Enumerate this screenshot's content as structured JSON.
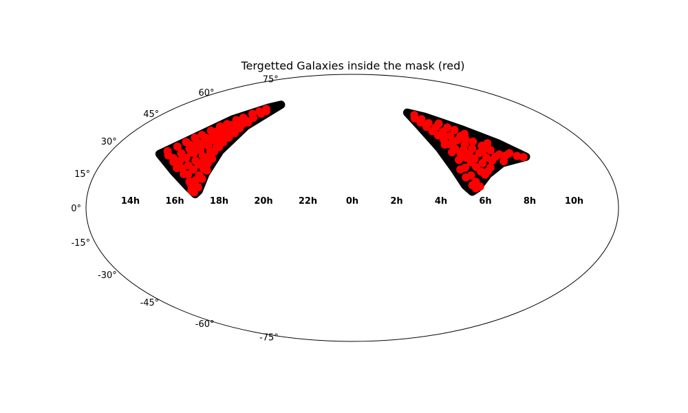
{
  "chart_data": {
    "type": "scatter",
    "projection": "aitoff",
    "title": "Tergetted Galaxies inside the mask (red)",
    "xlabel": "",
    "ylabel": "",
    "x_tick_labels": [
      "14h",
      "16h",
      "18h",
      "20h",
      "22h",
      "0h",
      "2h",
      "4h",
      "6h",
      "8h",
      "10h"
    ],
    "y_tick_labels": [
      "-75°",
      "-60°",
      "-45°",
      "-30°",
      "-15°",
      "0°",
      "15°",
      "30°",
      "45°",
      "60°",
      "75°"
    ],
    "y_ticks_deg": [
      -75,
      -60,
      -45,
      -30,
      -15,
      0,
      15,
      30,
      45,
      60,
      75
    ],
    "x_range_deg": [
      -180,
      180
    ],
    "y_range_deg": [
      -90,
      90
    ],
    "grid": false,
    "legend": "none",
    "colors": {
      "mask": "#000000",
      "targets": "#ff0000",
      "outline": "#000000"
    },
    "regions": [
      {
        "role": "mask footprint",
        "color": "#000000",
        "polygon": [
          [
            -145,
            28
          ],
          [
            -120,
            52
          ],
          [
            -104,
            62
          ],
          [
            -96,
            65
          ],
          [
            -101,
            50
          ],
          [
            -103,
            34
          ],
          [
            -104,
            20
          ],
          [
            -105,
            10
          ],
          [
            -107,
            8
          ],
          [
            -113,
            12
          ],
          [
            -127,
            20
          ],
          [
            -145,
            28
          ]
        ]
      },
      {
        "role": "mask footprint",
        "color": "#000000",
        "polygon": [
          [
            66,
            62
          ],
          [
            66,
            55
          ],
          [
            70,
            38
          ],
          [
            74,
            24
          ],
          [
            78,
            14
          ],
          [
            82,
            10
          ],
          [
            86,
            12
          ],
          [
            96,
            20
          ],
          [
            110,
            26
          ],
          [
            130,
            28
          ],
          [
            118,
            37
          ],
          [
            100,
            48
          ],
          [
            80,
            58
          ],
          [
            66,
            62
          ]
        ]
      }
    ],
    "series": [
      {
        "color": "#ff0000",
        "points": [
          [
            -141,
            30
          ],
          [
            -137,
            33
          ],
          [
            -134,
            36
          ],
          [
            -131,
            39
          ],
          [
            -128,
            41
          ],
          [
            -125,
            44
          ],
          [
            -122,
            47
          ],
          [
            -119,
            49
          ],
          [
            -116,
            52
          ],
          [
            -113,
            54
          ],
          [
            -110,
            57
          ],
          [
            -107,
            59
          ],
          [
            -104,
            61
          ],
          [
            -101,
            60
          ],
          [
            -138,
            28
          ],
          [
            -133,
            27
          ],
          [
            -130,
            30
          ],
          [
            -127,
            33
          ],
          [
            -124,
            35
          ],
          [
            -121,
            38
          ],
          [
            -118,
            41
          ],
          [
            -115,
            43
          ],
          [
            -112,
            46
          ],
          [
            -109,
            48
          ],
          [
            -106,
            51
          ],
          [
            -104,
            55
          ],
          [
            -102,
            58
          ],
          [
            -131,
            25
          ],
          [
            -127,
            26
          ],
          [
            -124,
            28
          ],
          [
            -121,
            31
          ],
          [
            -118,
            33
          ],
          [
            -115,
            36
          ],
          [
            -112,
            39
          ],
          [
            -109,
            42
          ],
          [
            -106,
            45
          ],
          [
            -104,
            48
          ],
          [
            -103,
            52
          ],
          [
            -126,
            22
          ],
          [
            -122,
            22
          ],
          [
            -119,
            24
          ],
          [
            -116,
            27
          ],
          [
            -113,
            30
          ],
          [
            -110,
            33
          ],
          [
            -108,
            36
          ],
          [
            -106,
            39
          ],
          [
            -105,
            42
          ],
          [
            -104,
            45
          ],
          [
            -119,
            19
          ],
          [
            -116,
            19
          ],
          [
            -114,
            22
          ],
          [
            -112,
            25
          ],
          [
            -110,
            27
          ],
          [
            -108,
            30
          ],
          [
            -107,
            33
          ],
          [
            -106,
            36
          ],
          [
            -113,
            15
          ],
          [
            -111,
            13
          ],
          [
            -109,
            16
          ],
          [
            -108,
            19
          ],
          [
            -107,
            23
          ],
          [
            -106,
            26
          ],
          [
            -105,
            29
          ],
          [
            -110,
            10
          ],
          [
            -108,
            9
          ],
          [
            -106,
            12
          ],
          [
            -105,
            17
          ],
          [
            -104,
            22
          ],
          [
            -120,
            44
          ],
          [
            -117,
            46
          ],
          [
            -123,
            40
          ],
          [
            -126,
            37
          ],
          [
            -129,
            35
          ],
          [
            -117,
            39
          ],
          [
            -114,
            49
          ],
          [
            -111,
            51
          ],
          [
            -108,
            53
          ],
          [
            -120,
            36
          ],
          [
            -123,
            31
          ],
          [
            -114,
            41
          ],
          [
            -111,
            45
          ]
        ]
      },
      {
        "color": "#ff0000",
        "points": [
          [
            68,
            58
          ],
          [
            70,
            55
          ],
          [
            72,
            52
          ],
          [
            74,
            49
          ],
          [
            76,
            46
          ],
          [
            78,
            43
          ],
          [
            80,
            40
          ],
          [
            82,
            37
          ],
          [
            84,
            34
          ],
          [
            86,
            31
          ],
          [
            88,
            28
          ],
          [
            90,
            25
          ],
          [
            92,
            22
          ],
          [
            94,
            20
          ],
          [
            71,
            60
          ],
          [
            74,
            57
          ],
          [
            77,
            54
          ],
          [
            80,
            51
          ],
          [
            83,
            48
          ],
          [
            86,
            45
          ],
          [
            89,
            42
          ],
          [
            92,
            39
          ],
          [
            95,
            36
          ],
          [
            98,
            33
          ],
          [
            101,
            30
          ],
          [
            104,
            28
          ],
          [
            76,
            40
          ],
          [
            78,
            35
          ],
          [
            80,
            30
          ],
          [
            82,
            25
          ],
          [
            84,
            20
          ],
          [
            86,
            16
          ],
          [
            88,
            13
          ],
          [
            85,
            12
          ],
          [
            83,
            14
          ],
          [
            80,
            19
          ],
          [
            78,
            24
          ],
          [
            96,
            42
          ],
          [
            100,
            40
          ],
          [
            104,
            37
          ],
          [
            108,
            34
          ],
          [
            112,
            31
          ],
          [
            116,
            30
          ],
          [
            120,
            31
          ],
          [
            124,
            29
          ],
          [
            128,
            28
          ],
          [
            99,
            45
          ],
          [
            94,
            48
          ],
          [
            90,
            50
          ],
          [
            86,
            53
          ],
          [
            92,
            30
          ],
          [
            96,
            27
          ],
          [
            100,
            24
          ],
          [
            97,
            22
          ],
          [
            90,
            33
          ],
          [
            88,
            36
          ],
          [
            84,
            41
          ],
          [
            80,
            46
          ],
          [
            108,
            30
          ],
          [
            112,
            27
          ],
          [
            106,
            36
          ],
          [
            110,
            38
          ],
          [
            102,
            34
          ],
          [
            94,
            44
          ]
        ]
      }
    ]
  }
}
